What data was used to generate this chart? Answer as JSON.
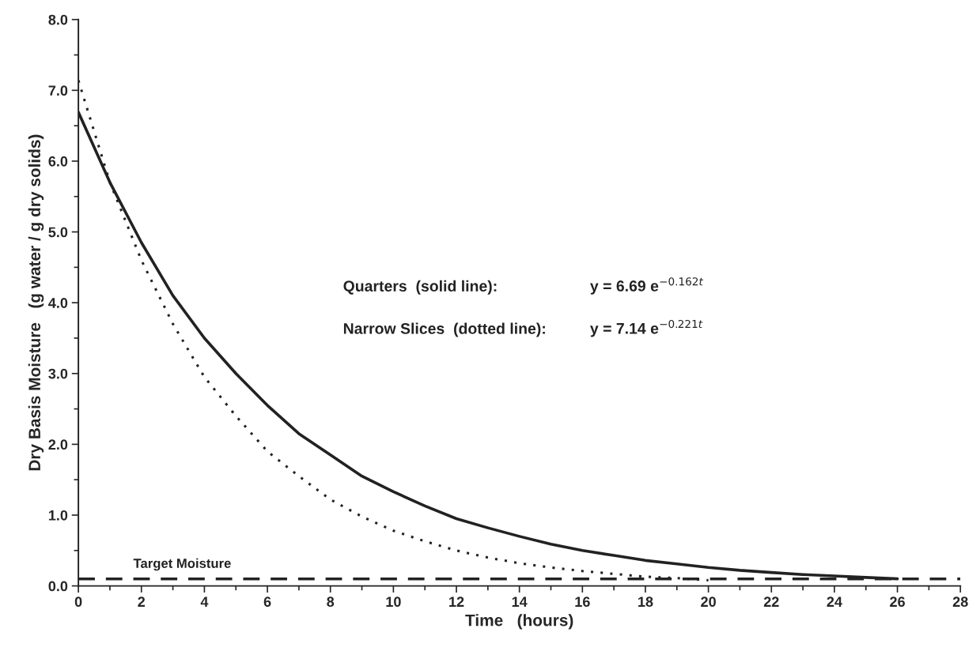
{
  "chart_data": {
    "type": "line",
    "xlabel": "Time   (hours)",
    "ylabel": "Dry Basis Moisture   (g water / g dry solids)",
    "xlim": [
      0,
      28
    ],
    "xticks": [
      0,
      2,
      4,
      6,
      8,
      10,
      12,
      14,
      16,
      18,
      20,
      22,
      24,
      26,
      28
    ],
    "ylim": [
      0,
      8
    ],
    "yticks": [
      {
        "value": 0,
        "label": "0.0"
      },
      {
        "value": 1,
        "label": "1.0"
      },
      {
        "value": 2,
        "label": "2.0"
      },
      {
        "value": 3,
        "label": "3.0"
      },
      {
        "value": 4,
        "label": "4.0"
      },
      {
        "value": 5,
        "label": "5.0"
      },
      {
        "value": 6,
        "label": "6.0"
      },
      {
        "value": 7,
        "label": "7.0"
      },
      {
        "value": 8,
        "label": "8.0"
      }
    ],
    "grid": false,
    "legend": false,
    "marker": "none",
    "series": [
      {
        "color": "#222222",
        "line_style": "solid",
        "x": [
          0,
          1,
          2,
          3,
          4,
          5,
          6,
          7,
          8,
          9,
          10,
          11,
          12,
          13,
          14,
          15,
          16,
          17,
          18,
          19,
          20,
          21,
          22,
          23,
          24,
          25,
          26
        ],
        "values": [
          6.69,
          5.7,
          4.85,
          4.1,
          3.5,
          3.0,
          2.55,
          2.15,
          1.85,
          1.55,
          1.33,
          1.13,
          0.95,
          0.82,
          0.7,
          0.59,
          0.5,
          0.43,
          0.36,
          0.31,
          0.26,
          0.22,
          0.19,
          0.16,
          0.14,
          0.12,
          0.1
        ]
      },
      {
        "color": "#222222",
        "line_style": "dotted",
        "x": [
          0,
          1,
          2,
          3,
          4,
          5,
          6,
          7,
          8,
          9,
          10,
          11,
          12,
          13,
          14,
          15,
          16,
          17,
          18,
          19,
          20
        ],
        "values": [
          7.14,
          5.7,
          4.6,
          3.7,
          2.95,
          2.4,
          1.9,
          1.55,
          1.22,
          0.98,
          0.78,
          0.63,
          0.5,
          0.4,
          0.32,
          0.26,
          0.21,
          0.17,
          0.13,
          0.11,
          0.08
        ]
      }
    ],
    "ref_lines": [
      {
        "axis": "y",
        "value": 0.1,
        "label": "Target Moisture",
        "color": "#222222",
        "line_style": "dashed"
      }
    ],
    "annotations": [
      "Quarters  (solid line):",
      "y = 6.69 e$^{−0.162t}$",
      "Narrow Slices  (dotted line):",
      "y = 7.14 e$^{−0.221t}$"
    ]
  }
}
